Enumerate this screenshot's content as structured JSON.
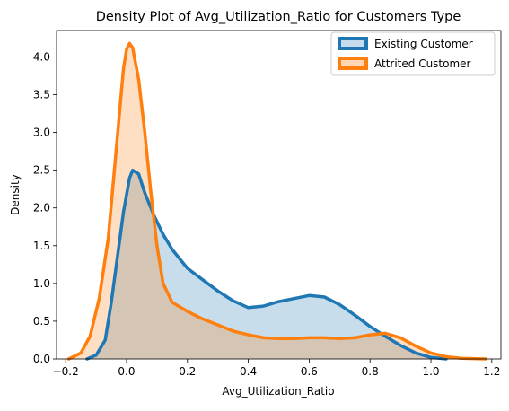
{
  "chart_data": {
    "type": "area",
    "title": "Density Plot of Avg_Utilization_Ratio for Customers Type",
    "xlabel": "Avg_Utilization_Ratio",
    "ylabel": "Density",
    "xlim": [
      -0.23,
      1.23
    ],
    "ylim": [
      0.0,
      4.35
    ],
    "x_ticks": [
      -0.2,
      0.0,
      0.2,
      0.4,
      0.6,
      0.8,
      1.0,
      1.2
    ],
    "y_ticks": [
      0.0,
      0.5,
      1.0,
      1.5,
      2.0,
      2.5,
      3.0,
      3.5,
      4.0
    ],
    "x_tick_labels": [
      "−0.2",
      "0.0",
      "0.2",
      "0.4",
      "0.6",
      "0.8",
      "1.0",
      "1.2"
    ],
    "y_tick_labels": [
      "0.0",
      "0.5",
      "1.0",
      "1.5",
      "2.0",
      "2.5",
      "3.0",
      "3.5",
      "4.0"
    ],
    "grid": false,
    "legend_position": "top-right",
    "series": [
      {
        "name": "Existing Customer",
        "color": "#1f77b4",
        "fill": "#c6dbed",
        "points": [
          [
            -0.13,
            0.0
          ],
          [
            -0.1,
            0.05
          ],
          [
            -0.07,
            0.25
          ],
          [
            -0.05,
            0.75
          ],
          [
            -0.03,
            1.35
          ],
          [
            -0.01,
            1.95
          ],
          [
            0.01,
            2.4
          ],
          [
            0.02,
            2.5
          ],
          [
            0.04,
            2.45
          ],
          [
            0.06,
            2.2
          ],
          [
            0.09,
            1.9
          ],
          [
            0.12,
            1.65
          ],
          [
            0.15,
            1.45
          ],
          [
            0.18,
            1.3
          ],
          [
            0.2,
            1.2
          ],
          [
            0.25,
            1.05
          ],
          [
            0.3,
            0.9
          ],
          [
            0.35,
            0.77
          ],
          [
            0.4,
            0.68
          ],
          [
            0.45,
            0.7
          ],
          [
            0.5,
            0.76
          ],
          [
            0.55,
            0.8
          ],
          [
            0.6,
            0.84
          ],
          [
            0.65,
            0.82
          ],
          [
            0.7,
            0.72
          ],
          [
            0.75,
            0.58
          ],
          [
            0.8,
            0.43
          ],
          [
            0.85,
            0.3
          ],
          [
            0.9,
            0.18
          ],
          [
            0.95,
            0.08
          ],
          [
            1.0,
            0.02
          ],
          [
            1.05,
            0.0
          ]
        ]
      },
      {
        "name": "Attrited Customer",
        "color": "#ff7f0e",
        "fill": "#ffd6b3",
        "points": [
          [
            -0.19,
            0.0
          ],
          [
            -0.15,
            0.08
          ],
          [
            -0.12,
            0.3
          ],
          [
            -0.09,
            0.8
          ],
          [
            -0.06,
            1.6
          ],
          [
            -0.04,
            2.5
          ],
          [
            -0.02,
            3.4
          ],
          [
            -0.01,
            3.85
          ],
          [
            0.0,
            4.1
          ],
          [
            0.01,
            4.18
          ],
          [
            0.02,
            4.12
          ],
          [
            0.04,
            3.7
          ],
          [
            0.06,
            3.0
          ],
          [
            0.08,
            2.2
          ],
          [
            0.1,
            1.5
          ],
          [
            0.12,
            1.0
          ],
          [
            0.15,
            0.75
          ],
          [
            0.2,
            0.63
          ],
          [
            0.25,
            0.53
          ],
          [
            0.3,
            0.45
          ],
          [
            0.35,
            0.37
          ],
          [
            0.4,
            0.32
          ],
          [
            0.45,
            0.28
          ],
          [
            0.5,
            0.27
          ],
          [
            0.55,
            0.27
          ],
          [
            0.6,
            0.28
          ],
          [
            0.65,
            0.28
          ],
          [
            0.7,
            0.27
          ],
          [
            0.75,
            0.28
          ],
          [
            0.8,
            0.32
          ],
          [
            0.85,
            0.34
          ],
          [
            0.9,
            0.28
          ],
          [
            0.95,
            0.17
          ],
          [
            1.0,
            0.08
          ],
          [
            1.05,
            0.03
          ],
          [
            1.1,
            0.01
          ],
          [
            1.18,
            0.0
          ]
        ]
      }
    ]
  }
}
